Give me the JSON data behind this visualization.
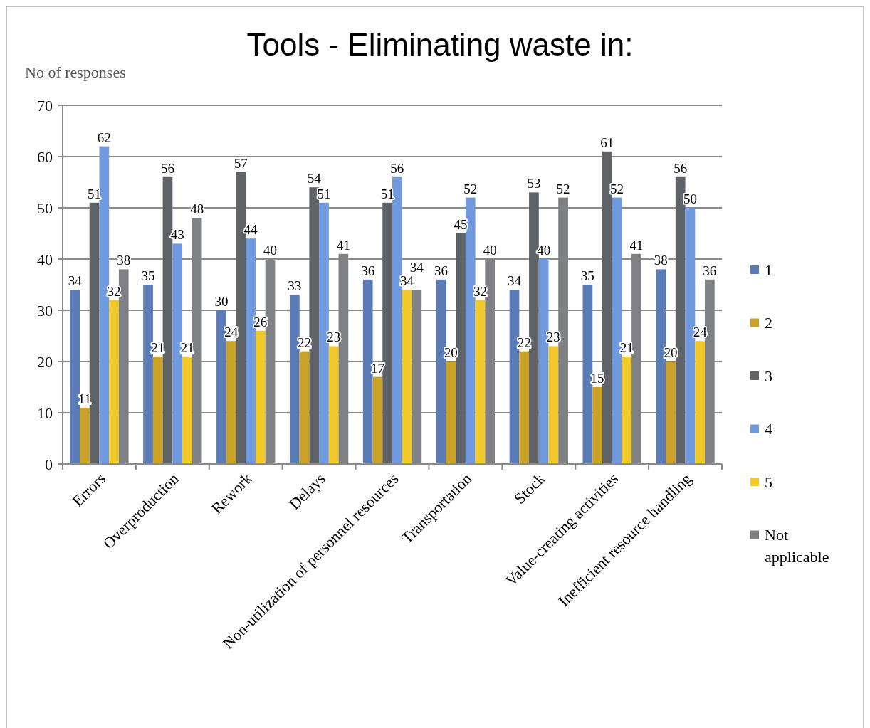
{
  "chart_data": {
    "type": "bar",
    "title": "Tools - Eliminating waste in:",
    "ylabel": "No of responses",
    "categories": [
      "Errors",
      "Overproduction",
      "Rework",
      "Delays",
      "Non-utilization of personnel resources",
      "Transportation",
      "Stock",
      "Value-creating activities",
      "Inefficient resource handling"
    ],
    "series": [
      {
        "name": "1",
        "color": "#5b7bb6",
        "values": [
          34,
          35,
          30,
          33,
          36,
          36,
          34,
          35,
          38
        ]
      },
      {
        "name": "2",
        "color": "#c9a227",
        "values": [
          11,
          21,
          24,
          22,
          17,
          20,
          22,
          15,
          20
        ]
      },
      {
        "name": "3",
        "color": "#5f6368",
        "values": [
          51,
          56,
          57,
          54,
          51,
          45,
          53,
          61,
          56
        ]
      },
      {
        "name": "4",
        "color": "#7199dd",
        "values": [
          62,
          43,
          44,
          51,
          56,
          52,
          40,
          52,
          50
        ]
      },
      {
        "name": "5",
        "color": "#f2c92a",
        "values": [
          32,
          21,
          26,
          23,
          34,
          32,
          23,
          21,
          24
        ]
      },
      {
        "name": "Not applicable",
        "color": "#7f8184",
        "values": [
          38,
          48,
          40,
          41,
          34,
          40,
          52,
          41,
          36
        ]
      }
    ],
    "ylim": [
      0,
      70
    ],
    "yticks": [
      0,
      10,
      20,
      30,
      40,
      50,
      60,
      70
    ],
    "grid": "y",
    "legend": "right",
    "data_labels": true
  }
}
